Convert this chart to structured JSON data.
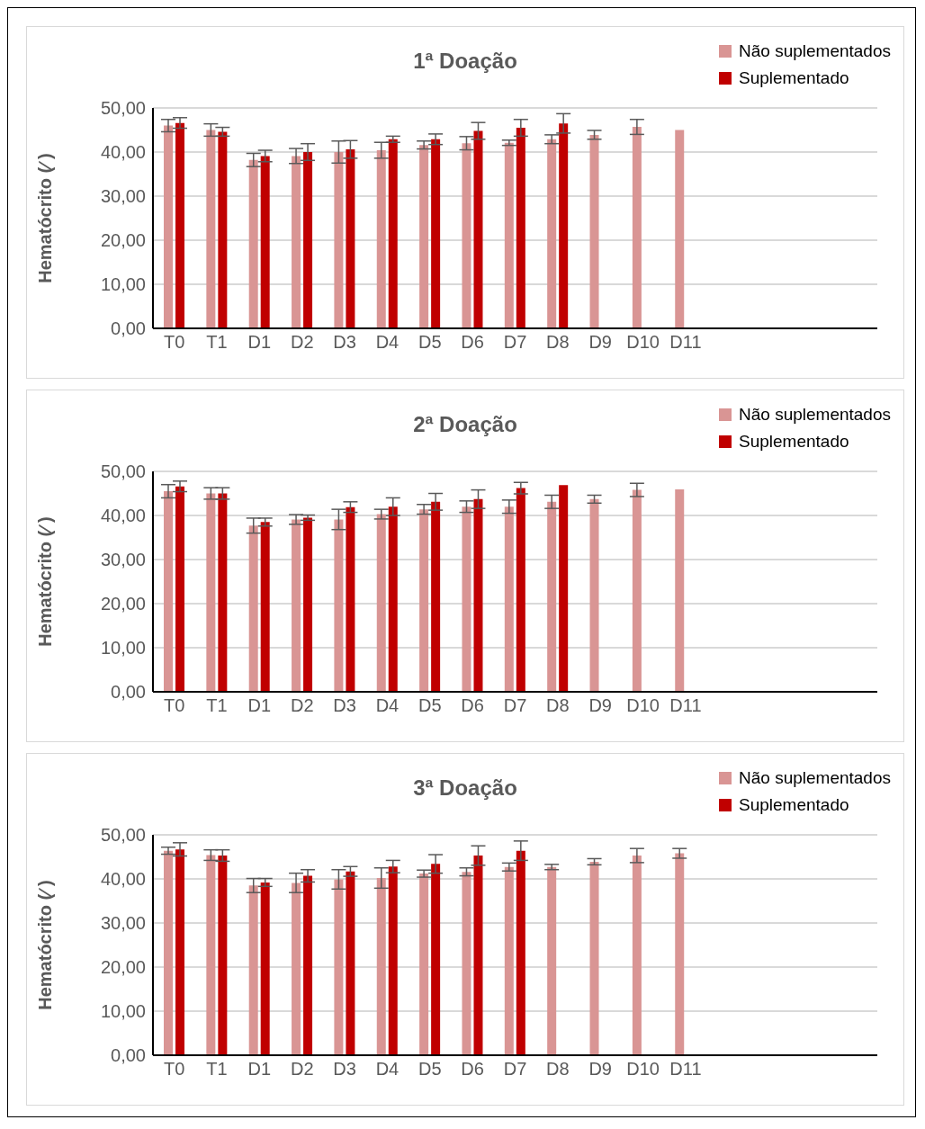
{
  "chart_data": [
    {
      "type": "bar",
      "title": "1ª Doação",
      "ylabel": "Hematócrito (∕ )",
      "categories": [
        "T0",
        "T1",
        "D1",
        "D2",
        "D3",
        "D4",
        "D5",
        "D6",
        "D7",
        "D8",
        "D9",
        "D10",
        "D11",
        null,
        null,
        null,
        null
      ],
      "ylim": [
        0,
        50
      ],
      "yticks": [
        {
          "value": 0,
          "label": "0,00"
        },
        {
          "value": 10,
          "label": "10,00"
        },
        {
          "value": 20,
          "label": "20,00"
        },
        {
          "value": 30,
          "label": "30,00"
        },
        {
          "value": 40,
          "label": "40,00"
        },
        {
          "value": 50,
          "label": "50,00"
        }
      ],
      "grid": "y",
      "legend": "top right",
      "series": [
        {
          "name": "Não suplementados",
          "color": "#d99594",
          "values": [
            46.0,
            45.0,
            38.2,
            39.1,
            40.0,
            40.4,
            41.6,
            42.0,
            42.1,
            42.9,
            43.9,
            45.7,
            45.0,
            null,
            null,
            null,
            null
          ],
          "errors": [
            1.4,
            1.4,
            1.5,
            1.7,
            2.5,
            1.8,
            0.9,
            1.5,
            0.6,
            1.0,
            1.0,
            1.7,
            null,
            null,
            null,
            null,
            null
          ]
        },
        {
          "name": "Suplementado",
          "color": "#c00000",
          "values": [
            46.6,
            44.6,
            39.1,
            40.0,
            40.6,
            42.9,
            42.9,
            44.8,
            45.5,
            46.5,
            null,
            null,
            null,
            null,
            null,
            null,
            null
          ],
          "errors": [
            1.2,
            1.0,
            1.3,
            1.9,
            2.0,
            0.7,
            1.2,
            1.9,
            1.9,
            2.2,
            null,
            null,
            null,
            null,
            null,
            null,
            null
          ]
        }
      ]
    },
    {
      "type": "bar",
      "title": "2ª Doação",
      "ylabel": "Hematócrito (∕ )",
      "categories": [
        "T0",
        "T1",
        "D1",
        "D2",
        "D3",
        "D4",
        "D5",
        "D6",
        "D7",
        "D8",
        "D9",
        "D10",
        "D11",
        null,
        null,
        null,
        null
      ],
      "ylim": [
        0,
        50
      ],
      "yticks": [
        {
          "value": 0,
          "label": "0,00"
        },
        {
          "value": 10,
          "label": "10,00"
        },
        {
          "value": 20,
          "label": "20,00"
        },
        {
          "value": 30,
          "label": "30,00"
        },
        {
          "value": 40,
          "label": "40,00"
        },
        {
          "value": 50,
          "label": "50,00"
        }
      ],
      "grid": "y",
      "legend": "top right",
      "series": [
        {
          "name": "Não suplementados",
          "color": "#d99594",
          "values": [
            45.5,
            45.0,
            37.7,
            39.1,
            39.1,
            40.3,
            41.4,
            42.0,
            42.0,
            43.1,
            43.7,
            45.8,
            45.9,
            null,
            null,
            null,
            null
          ],
          "errors": [
            1.5,
            1.3,
            1.7,
            1.1,
            2.3,
            1.1,
            1.1,
            1.3,
            1.5,
            1.5,
            0.9,
            1.5,
            null,
            null,
            null,
            null,
            null
          ]
        },
        {
          "name": "Suplementado",
          "color": "#c00000",
          "values": [
            46.6,
            45.0,
            38.5,
            39.5,
            41.9,
            42.0,
            43.1,
            43.7,
            46.2,
            46.9,
            null,
            null,
            null,
            null,
            null,
            null,
            null
          ],
          "errors": [
            1.2,
            1.3,
            0.9,
            0.6,
            1.2,
            2.0,
            1.9,
            2.1,
            1.3,
            null,
            null,
            null,
            null,
            null,
            null,
            null,
            null
          ]
        }
      ]
    },
    {
      "type": "bar",
      "title": "3ª Doação",
      "ylabel": "Hematócrito (∕ )",
      "categories": [
        "T0",
        "T1",
        "D1",
        "D2",
        "D3",
        "D4",
        "D5",
        "D6",
        "D7",
        "D8",
        "D9",
        "D10",
        "D11",
        null,
        null,
        null,
        null
      ],
      "ylim": [
        0,
        50
      ],
      "yticks": [
        {
          "value": 0,
          "label": "0,00"
        },
        {
          "value": 10,
          "label": "10,00"
        },
        {
          "value": 20,
          "label": "20,00"
        },
        {
          "value": 30,
          "label": "30,00"
        },
        {
          "value": 40,
          "label": "40,00"
        },
        {
          "value": 50,
          "label": "50,00"
        }
      ],
      "grid": "y",
      "legend": "top right",
      "series": [
        {
          "name": "Não suplementados",
          "color": "#d99594",
          "values": [
            46.4,
            45.4,
            38.5,
            39.1,
            39.9,
            40.2,
            41.2,
            41.6,
            42.7,
            42.7,
            43.9,
            45.3,
            45.8,
            null,
            null,
            null,
            null
          ],
          "errors": [
            0.8,
            1.2,
            1.6,
            2.2,
            2.2,
            2.3,
            0.8,
            0.9,
            0.9,
            0.6,
            0.7,
            1.6,
            1.1,
            null,
            null,
            null,
            null
          ]
        },
        {
          "name": "Suplementado",
          "color": "#c00000",
          "values": [
            46.7,
            45.3,
            39.2,
            40.7,
            41.7,
            42.8,
            43.4,
            45.3,
            46.4,
            null,
            null,
            null,
            null,
            null,
            null,
            null,
            null
          ],
          "errors": [
            1.5,
            1.3,
            0.9,
            1.4,
            1.1,
            1.4,
            2.1,
            2.2,
            2.2,
            null,
            null,
            null,
            null,
            null,
            null,
            null,
            null
          ]
        }
      ]
    }
  ]
}
